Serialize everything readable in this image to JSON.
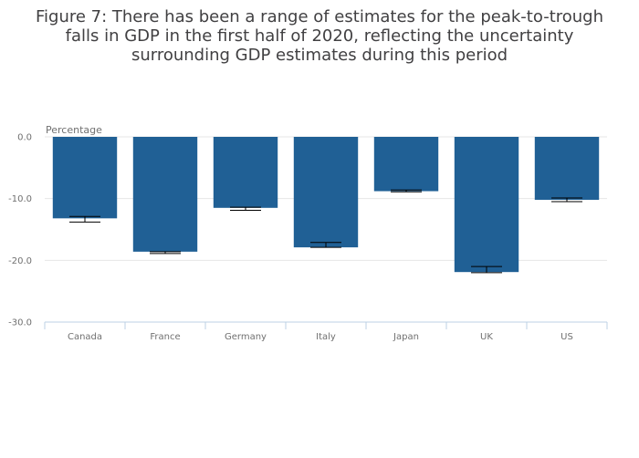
{
  "chart_data": {
    "type": "bar",
    "title": "Figure 7: There has been a range of estimates for the peak-to-trough falls in GDP in the first half of 2020, reflecting the uncertainty surrounding GDP estimates during this period",
    "xlabel": "",
    "ylabel": "Percentage",
    "categories": [
      "Canada",
      "France",
      "Germany",
      "Italy",
      "Japan",
      "UK",
      "US"
    ],
    "values": [
      -13.2,
      -18.6,
      -11.5,
      -17.9,
      -8.8,
      -21.9,
      -10.2
    ],
    "error_low": [
      -13.8,
      -18.9,
      -11.9,
      -17.9,
      -8.9,
      -22.0,
      -10.5
    ],
    "error_high": [
      -12.9,
      -18.6,
      -11.4,
      -17.1,
      -8.6,
      -21.0,
      -9.9
    ],
    "ylim": [
      -30,
      0
    ],
    "yticks": [
      0,
      -10,
      -20,
      -30
    ],
    "ytick_labels": [
      "0.0",
      "-10.0",
      "-20.0",
      "-30.0"
    ],
    "grid": true,
    "bar_color": "#206095",
    "error_bar_color": "#000000",
    "grid_color": "#e6e6e6",
    "axis_color": "#bcd0e4"
  }
}
